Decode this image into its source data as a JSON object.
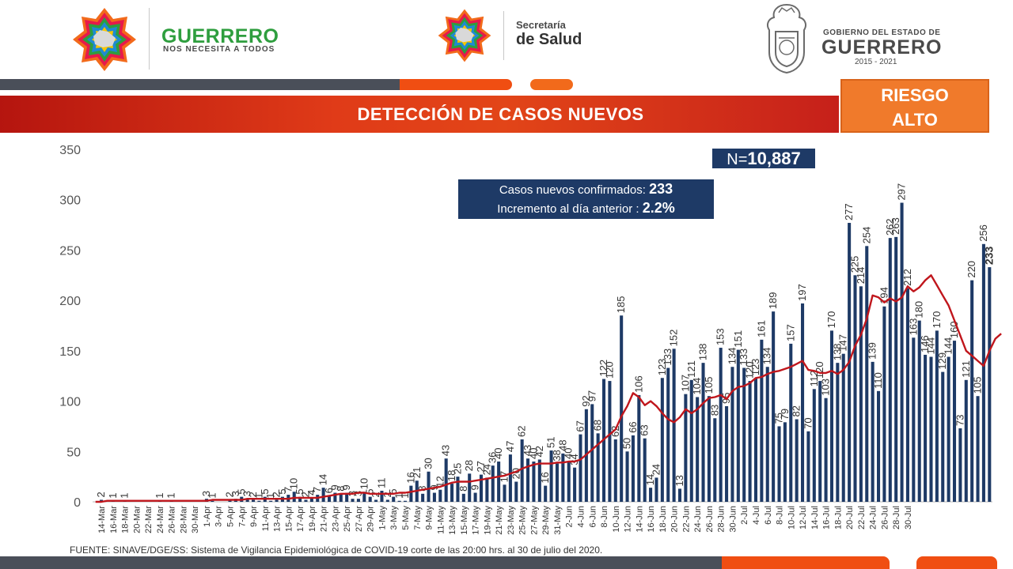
{
  "header": {
    "left_brand": "GUERRERO",
    "left_slogan": "NOS NECESITA A TODOS",
    "middle_line1": "Secretaría",
    "middle_line2": "de Salud",
    "right_line1": "GOBIERNO DEL ESTADO DE",
    "right_line2": "GUERRERO",
    "right_line3": "2015 - 2021"
  },
  "title": "DETECCIÓN DE CASOS NUEVOS",
  "risk": {
    "line1": "RIESGO",
    "line2": "ALTO"
  },
  "total": {
    "prefix": "N=",
    "value": "10,887"
  },
  "info": {
    "label1": "Casos nuevos confirmados:",
    "value1": "233",
    "label2": "Incremento al día anterior :",
    "value2": "2.2%"
  },
  "footnote": "FUENTE: SINAVE/DGE/SS: Sistema de Vigilancia Epidemiológica de COVID-19 corte de las 20:00 hrs. al 30 de julio del 2020.",
  "colors": {
    "bar": "#1e3a66",
    "line": "#c0161c",
    "title_band": "#e03b18",
    "risk_box": "#f07a2b",
    "green_brand": "#2e9e3e"
  },
  "icons": [
    "guerrero-star-logo-icon",
    "secretaria-salud-star-logo-icon",
    "gobierno-coat-of-arms-icon"
  ],
  "chart_data": {
    "type": "bar",
    "ylim": [
      0,
      350
    ],
    "yticks": [
      0,
      50,
      100,
      150,
      200,
      250,
      300,
      350
    ],
    "grid": false,
    "x_tick_labels": [
      "14-Mar",
      "16-Mar",
      "18-Mar",
      "20-Mar",
      "22-Mar",
      "24-Mar",
      "26-Mar",
      "28-Mar",
      "30-Mar",
      "1-Apr",
      "3-Apr",
      "5-Apr",
      "7-Apr",
      "9-Apr",
      "11-Apr",
      "13-Apr",
      "15-Apr",
      "17-Apr",
      "19-Apr",
      "21-Apr",
      "23-Apr",
      "25-Apr",
      "27-Apr",
      "29-Apr",
      "1-May",
      "3-May",
      "5-May",
      "7-May",
      "9-May",
      "11-May",
      "13-May",
      "15-May",
      "17-May",
      "19-May",
      "21-May",
      "23-May",
      "25-May",
      "27-May",
      "29-May",
      "31-May",
      "2-Jun",
      "4-Jun",
      "6-Jun",
      "8-Jun",
      "10-Jun",
      "12-Jun",
      "14-Jun",
      "16-Jun",
      "18-Jun",
      "20-Jun",
      "22-Jun",
      "24-Jun",
      "26-Jun",
      "28-Jun",
      "30-Jun",
      "2-Jul",
      "4-Jul",
      "6-Jul",
      "8-Jul",
      "10-Jul",
      "12-Jul",
      "14-Jul",
      "16-Jul",
      "18-Jul",
      "20-Jul",
      "22-Jul",
      "24-Jul",
      "26-Jul",
      "28-Jul",
      "30-Jul"
    ],
    "values": [
      0,
      2,
      0,
      1,
      0,
      1,
      0,
      0,
      0,
      0,
      0,
      1,
      0,
      1,
      0,
      0,
      0,
      0,
      0,
      3,
      1,
      0,
      0,
      2,
      3,
      5,
      3,
      2,
      1,
      5,
      1,
      2,
      5,
      7,
      10,
      5,
      2,
      4,
      7,
      14,
      6,
      9,
      8,
      9,
      3,
      3,
      10,
      5,
      2,
      11,
      2,
      5,
      1,
      1,
      16,
      21,
      8,
      30,
      9,
      12,
      43,
      18,
      25,
      8,
      28,
      9,
      27,
      24,
      36,
      40,
      17,
      47,
      20,
      62,
      43,
      40,
      42,
      16,
      51,
      38,
      48,
      40,
      34,
      67,
      92,
      97,
      68,
      122,
      120,
      62,
      185,
      50,
      66,
      106,
      63,
      14,
      24,
      123,
      133,
      152,
      13,
      107,
      121,
      104,
      138,
      105,
      83,
      153,
      95,
      134,
      151,
      133,
      120,
      123,
      161,
      134,
      189,
      75,
      79,
      157,
      82,
      197,
      70,
      112,
      120,
      103,
      170,
      138,
      147,
      277,
      225,
      214,
      254,
      139,
      110,
      194,
      262,
      263,
      297,
      212,
      163,
      180,
      146,
      144,
      170,
      129,
      144,
      160,
      73,
      121,
      220,
      105,
      256,
      233
    ],
    "series": [
      {
        "values": [
          0,
          0,
          1,
          1,
          1,
          1,
          1,
          1,
          1,
          1,
          1,
          1,
          1,
          1,
          1,
          1,
          1,
          1,
          1,
          1,
          2,
          2,
          2,
          2,
          2,
          2,
          3,
          3,
          3,
          3,
          3,
          3,
          3,
          3,
          4,
          4,
          4,
          4,
          4,
          5,
          6,
          7,
          8,
          8,
          8,
          9,
          9,
          8,
          8,
          8,
          8,
          8,
          9,
          9,
          10,
          11,
          12,
          13,
          14,
          15,
          17,
          19,
          20,
          20,
          20,
          21,
          22,
          23,
          24,
          25,
          26,
          28,
          30,
          33,
          35,
          37,
          38,
          38,
          38,
          39,
          39,
          40,
          40,
          42,
          47,
          52,
          57,
          62,
          67,
          72,
          85,
          95,
          108,
          104,
          96,
          100,
          95,
          88,
          82,
          79,
          84,
          92,
          88,
          92,
          98,
          103,
          104,
          106,
          102,
          110,
          114,
          115,
          118,
          123,
          124,
          127,
          129,
          130,
          132,
          134,
          137,
          140,
          131,
          130,
          128,
          128,
          130,
          127,
          131,
          139,
          155,
          166,
          182,
          205,
          203,
          198,
          202,
          199,
          203,
          214,
          209,
          213,
          220,
          225,
          215,
          205,
          195,
          180,
          165,
          150,
          145,
          140,
          135,
          150,
          162,
          167
        ]
      }
    ]
  }
}
